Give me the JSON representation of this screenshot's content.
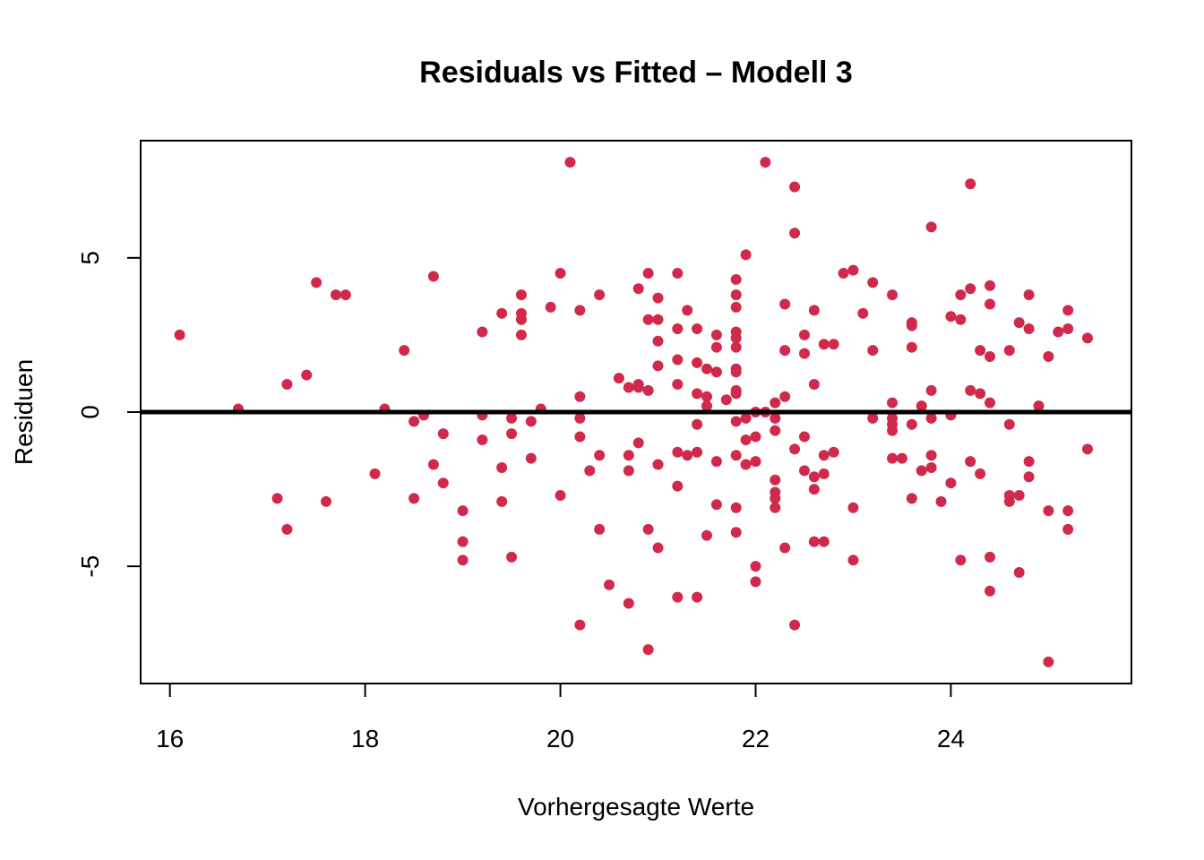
{
  "chart_data": {
    "type": "scatter",
    "title": "Residuals vs Fitted – Modell 3",
    "xlabel": "Vorhergesagte Werte",
    "ylabel": "Residuen",
    "xlim": [
      15.7,
      25.85
    ],
    "ylim": [
      -8.8,
      8.8
    ],
    "x_ticks": [
      16,
      18,
      20,
      22,
      24
    ],
    "y_ticks": [
      -5,
      0,
      5
    ],
    "x_tick_labels": [
      "16",
      "18",
      "20",
      "22",
      "24"
    ],
    "y_tick_labels": [
      "-5",
      "0",
      "5"
    ],
    "grid": false,
    "reference_line": {
      "y": 0,
      "color": "#000000"
    },
    "point_color": "#D1294B",
    "points": [
      [
        16.1,
        2.5
      ],
      [
        16.7,
        0.1
      ],
      [
        17.1,
        -2.8
      ],
      [
        17.2,
        0.9
      ],
      [
        17.2,
        -3.8
      ],
      [
        17.4,
        1.2
      ],
      [
        17.5,
        4.2
      ],
      [
        17.6,
        -2.9
      ],
      [
        17.7,
        3.8
      ],
      [
        17.8,
        3.8
      ],
      [
        18.1,
        -2.0
      ],
      [
        18.2,
        0.1
      ],
      [
        18.4,
        2.0
      ],
      [
        18.5,
        -0.3
      ],
      [
        18.5,
        -2.8
      ],
      [
        18.6,
        -0.1
      ],
      [
        18.7,
        4.4
      ],
      [
        18.7,
        -1.7
      ],
      [
        18.8,
        -0.7
      ],
      [
        18.8,
        -2.3
      ],
      [
        19.0,
        -3.2
      ],
      [
        19.0,
        -4.2
      ],
      [
        19.0,
        -4.8
      ],
      [
        19.2,
        2.6
      ],
      [
        19.2,
        -0.1
      ],
      [
        19.2,
        -0.9
      ],
      [
        19.4,
        3.2
      ],
      [
        19.4,
        -1.8
      ],
      [
        19.4,
        -2.9
      ],
      [
        19.5,
        -0.2
      ],
      [
        19.5,
        -0.7
      ],
      [
        19.5,
        -4.7
      ],
      [
        19.6,
        3.8
      ],
      [
        19.6,
        3.2
      ],
      [
        19.6,
        3.0
      ],
      [
        19.6,
        2.5
      ],
      [
        19.7,
        -0.3
      ],
      [
        19.7,
        -1.5
      ],
      [
        19.8,
        0.1
      ],
      [
        19.9,
        3.4
      ],
      [
        20.0,
        4.5
      ],
      [
        20.0,
        -2.7
      ],
      [
        20.1,
        8.1
      ],
      [
        20.2,
        3.3
      ],
      [
        20.2,
        0.5
      ],
      [
        20.2,
        -0.2
      ],
      [
        20.2,
        -0.8
      ],
      [
        20.2,
        -6.9
      ],
      [
        20.3,
        -1.9
      ],
      [
        20.4,
        3.8
      ],
      [
        20.4,
        -1.4
      ],
      [
        20.4,
        -3.8
      ],
      [
        20.5,
        -5.6
      ],
      [
        20.6,
        1.1
      ],
      [
        20.7,
        0.8
      ],
      [
        20.7,
        -1.4
      ],
      [
        20.7,
        -1.9
      ],
      [
        20.7,
        -6.2
      ],
      [
        20.8,
        4.0
      ],
      [
        20.8,
        0.9
      ],
      [
        20.8,
        0.8
      ],
      [
        20.8,
        -1.0
      ],
      [
        20.9,
        4.5
      ],
      [
        20.9,
        3.0
      ],
      [
        20.9,
        0.7
      ],
      [
        20.9,
        -3.8
      ],
      [
        20.9,
        -7.7
      ],
      [
        21.0,
        3.7
      ],
      [
        21.0,
        3.0
      ],
      [
        21.0,
        2.3
      ],
      [
        21.0,
        1.5
      ],
      [
        21.0,
        -1.7
      ],
      [
        21.0,
        -4.4
      ],
      [
        21.2,
        4.5
      ],
      [
        21.2,
        2.7
      ],
      [
        21.2,
        1.7
      ],
      [
        21.2,
        0.9
      ],
      [
        21.2,
        -1.3
      ],
      [
        21.2,
        -2.4
      ],
      [
        21.2,
        -6.0
      ],
      [
        21.3,
        3.3
      ],
      [
        21.3,
        -1.4
      ],
      [
        21.4,
        2.7
      ],
      [
        21.4,
        1.6
      ],
      [
        21.4,
        0.6
      ],
      [
        21.4,
        -0.4
      ],
      [
        21.4,
        -1.3
      ],
      [
        21.4,
        -6.0
      ],
      [
        21.5,
        1.4
      ],
      [
        21.5,
        0.5
      ],
      [
        21.5,
        0.2
      ],
      [
        21.5,
        -4.0
      ],
      [
        21.6,
        2.5
      ],
      [
        21.6,
        2.1
      ],
      [
        21.6,
        1.3
      ],
      [
        21.6,
        -1.6
      ],
      [
        21.6,
        -3.0
      ],
      [
        21.7,
        0.4
      ],
      [
        21.8,
        4.3
      ],
      [
        21.8,
        3.8
      ],
      [
        21.8,
        3.4
      ],
      [
        21.8,
        2.6
      ],
      [
        21.8,
        2.4
      ],
      [
        21.8,
        2.1
      ],
      [
        21.8,
        1.4
      ],
      [
        21.8,
        1.3
      ],
      [
        21.8,
        0.7
      ],
      [
        21.8,
        0.6
      ],
      [
        21.8,
        -0.3
      ],
      [
        21.8,
        -1.4
      ],
      [
        21.8,
        -3.1
      ],
      [
        21.8,
        -3.9
      ],
      [
        21.9,
        5.1
      ],
      [
        21.9,
        -0.2
      ],
      [
        21.9,
        -0.9
      ],
      [
        21.9,
        -1.7
      ],
      [
        22.0,
        0.0
      ],
      [
        22.0,
        -0.8
      ],
      [
        22.0,
        -1.6
      ],
      [
        22.0,
        -5.0
      ],
      [
        22.0,
        -5.5
      ],
      [
        22.1,
        8.1
      ],
      [
        22.1,
        0.0
      ],
      [
        22.2,
        0.3
      ],
      [
        22.2,
        -0.2
      ],
      [
        22.2,
        -0.6
      ],
      [
        22.2,
        -2.2
      ],
      [
        22.2,
        -2.6
      ],
      [
        22.2,
        -2.8
      ],
      [
        22.2,
        -3.1
      ],
      [
        22.3,
        3.5
      ],
      [
        22.3,
        2.0
      ],
      [
        22.3,
        0.5
      ],
      [
        22.3,
        -4.4
      ],
      [
        22.4,
        7.3
      ],
      [
        22.4,
        5.8
      ],
      [
        22.4,
        -1.2
      ],
      [
        22.4,
        -6.9
      ],
      [
        22.5,
        2.5
      ],
      [
        22.5,
        1.9
      ],
      [
        22.5,
        -0.8
      ],
      [
        22.5,
        -1.9
      ],
      [
        22.6,
        3.3
      ],
      [
        22.6,
        0.9
      ],
      [
        22.6,
        -2.1
      ],
      [
        22.6,
        -2.5
      ],
      [
        22.6,
        -4.2
      ],
      [
        22.7,
        2.2
      ],
      [
        22.7,
        -1.4
      ],
      [
        22.7,
        -2.0
      ],
      [
        22.7,
        -4.2
      ],
      [
        22.8,
        2.2
      ],
      [
        22.8,
        -1.3
      ],
      [
        22.9,
        4.5
      ],
      [
        23.0,
        4.6
      ],
      [
        23.0,
        -3.1
      ],
      [
        23.0,
        -4.8
      ],
      [
        23.1,
        3.2
      ],
      [
        23.2,
        4.2
      ],
      [
        23.2,
        2.0
      ],
      [
        23.2,
        -0.2
      ],
      [
        23.4,
        3.8
      ],
      [
        23.4,
        0.3
      ],
      [
        23.4,
        -0.2
      ],
      [
        23.4,
        -0.4
      ],
      [
        23.4,
        -0.6
      ],
      [
        23.4,
        -1.5
      ],
      [
        23.5,
        -1.5
      ],
      [
        23.6,
        2.9
      ],
      [
        23.6,
        2.8
      ],
      [
        23.6,
        2.1
      ],
      [
        23.6,
        -0.4
      ],
      [
        23.6,
        -2.8
      ],
      [
        23.7,
        0.2
      ],
      [
        23.7,
        -1.9
      ],
      [
        23.8,
        6.0
      ],
      [
        23.8,
        0.7
      ],
      [
        23.8,
        -0.2
      ],
      [
        23.8,
        -1.4
      ],
      [
        23.8,
        -1.8
      ],
      [
        23.9,
        -2.9
      ],
      [
        24.0,
        3.1
      ],
      [
        24.0,
        -0.1
      ],
      [
        24.0,
        -2.3
      ],
      [
        24.1,
        3.8
      ],
      [
        24.1,
        3.0
      ],
      [
        24.1,
        -4.8
      ],
      [
        24.2,
        7.4
      ],
      [
        24.2,
        4.0
      ],
      [
        24.2,
        0.7
      ],
      [
        24.2,
        -1.6
      ],
      [
        24.3,
        2.0
      ],
      [
        24.3,
        0.6
      ],
      [
        24.3,
        -2.0
      ],
      [
        24.4,
        4.1
      ],
      [
        24.4,
        3.5
      ],
      [
        24.4,
        1.8
      ],
      [
        24.4,
        0.3
      ],
      [
        24.4,
        -4.7
      ],
      [
        24.4,
        -5.8
      ],
      [
        24.6,
        2.0
      ],
      [
        24.6,
        -0.4
      ],
      [
        24.6,
        -2.7
      ],
      [
        24.6,
        -2.9
      ],
      [
        24.7,
        2.9
      ],
      [
        24.7,
        -2.7
      ],
      [
        24.7,
        -5.2
      ],
      [
        24.8,
        3.8
      ],
      [
        24.8,
        2.7
      ],
      [
        24.8,
        -1.6
      ],
      [
        24.8,
        -2.1
      ],
      [
        24.9,
        0.2
      ],
      [
        25.0,
        1.8
      ],
      [
        25.0,
        -3.2
      ],
      [
        25.0,
        -8.1
      ],
      [
        25.1,
        2.6
      ],
      [
        25.2,
        3.3
      ],
      [
        25.2,
        2.7
      ],
      [
        25.2,
        -3.2
      ],
      [
        25.2,
        -3.8
      ],
      [
        25.4,
        2.4
      ],
      [
        25.4,
        -1.2
      ]
    ]
  }
}
